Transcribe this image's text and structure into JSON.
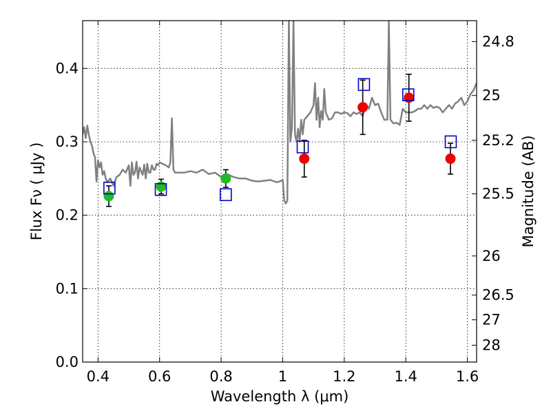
{
  "chart_data": {
    "type": "scatter",
    "title": "",
    "xlabel": "Wavelength  λ (μm)",
    "ylabel": "Flux  Fν  ( μJy )",
    "y2label": "Magnitude (AB)",
    "xlim": [
      0.35,
      1.63
    ],
    "ylim": [
      0.0,
      0.465
    ],
    "grid": true,
    "legend": "none",
    "x_ticks": [
      0.4,
      0.6,
      0.8,
      1.0,
      1.2,
      1.4,
      1.6
    ],
    "x_tick_labels": [
      "0.4",
      "0.6",
      "0.8",
      "1",
      "1.2",
      "1.4",
      "1.6"
    ],
    "y_ticks": [
      0.0,
      0.1,
      0.2,
      0.3,
      0.4
    ],
    "y_tick_labels": [
      "0.0",
      "0.1",
      "0.2",
      "0.3",
      "0.4"
    ],
    "y2_ticks": [
      24.8,
      25,
      25.2,
      25.5,
      26,
      26.5,
      27,
      28
    ],
    "y2_tick_labels": [
      "24.8",
      "25",
      "25.2",
      "25.5",
      "26",
      "26.5",
      "27",
      "28"
    ],
    "y2_ab_zero_point": 23.9,
    "colors": {
      "spectrum": "#808080",
      "green_points": "#22bb22",
      "red_points": "#ee0000",
      "model_squares": "#0000cc",
      "errorbars": "#000000"
    },
    "series": [
      {
        "kind": "line",
        "x": [
          0.35,
          0.355,
          0.36,
          0.365,
          0.37,
          0.375,
          0.38,
          0.385,
          0.39,
          0.395,
          0.4,
          0.405,
          0.41,
          0.415,
          0.42,
          0.425,
          0.43,
          0.44,
          0.45,
          0.46,
          0.47,
          0.48,
          0.49,
          0.5,
          0.505,
          0.51,
          0.515,
          0.52,
          0.525,
          0.53,
          0.535,
          0.54,
          0.545,
          0.55,
          0.555,
          0.56,
          0.565,
          0.57,
          0.575,
          0.58,
          0.585,
          0.59,
          0.595,
          0.6,
          0.61,
          0.62,
          0.63,
          0.635,
          0.64,
          0.645,
          0.65,
          0.66,
          0.68,
          0.7,
          0.72,
          0.74,
          0.76,
          0.78,
          0.8,
          0.82,
          0.84,
          0.86,
          0.88,
          0.9,
          0.92,
          0.94,
          0.96,
          0.98,
          0.99,
          1.0,
          1.005,
          1.01,
          1.015,
          1.02,
          1.025,
          1.03,
          1.035,
          1.04,
          1.045,
          1.05,
          1.055,
          1.06,
          1.065,
          1.07,
          1.08,
          1.09,
          1.1,
          1.105,
          1.11,
          1.115,
          1.12,
          1.125,
          1.13,
          1.135,
          1.14,
          1.15,
          1.16,
          1.17,
          1.18,
          1.19,
          1.2,
          1.21,
          1.22,
          1.23,
          1.24,
          1.25,
          1.26,
          1.27,
          1.28,
          1.29,
          1.3,
          1.31,
          1.32,
          1.33,
          1.34,
          1.345,
          1.35,
          1.36,
          1.37,
          1.38,
          1.39,
          1.4,
          1.41,
          1.42,
          1.43,
          1.44,
          1.45,
          1.46,
          1.47,
          1.48,
          1.49,
          1.5,
          1.51,
          1.52,
          1.53,
          1.54,
          1.55,
          1.56,
          1.57,
          1.58,
          1.59,
          1.6,
          1.61,
          1.62,
          1.63
        ],
        "y": [
          0.31,
          0.32,
          0.305,
          0.322,
          0.31,
          0.3,
          0.295,
          0.285,
          0.279,
          0.246,
          0.275,
          0.265,
          0.272,
          0.255,
          0.26,
          0.25,
          0.245,
          0.25,
          0.24,
          0.252,
          0.255,
          0.262,
          0.258,
          0.268,
          0.24,
          0.272,
          0.255,
          0.258,
          0.273,
          0.25,
          0.265,
          0.26,
          0.255,
          0.269,
          0.25,
          0.27,
          0.258,
          0.258,
          0.268,
          0.262,
          0.262,
          0.27,
          0.268,
          0.272,
          0.27,
          0.268,
          0.265,
          0.272,
          0.332,
          0.262,
          0.258,
          0.258,
          0.258,
          0.26,
          0.258,
          0.262,
          0.256,
          0.258,
          0.252,
          0.256,
          0.252,
          0.25,
          0.25,
          0.247,
          0.246,
          0.247,
          0.248,
          0.245,
          0.246,
          0.248,
          0.22,
          0.216,
          0.22,
          0.465,
          0.3,
          0.32,
          0.465,
          0.31,
          0.3,
          0.318,
          0.3,
          0.33,
          0.31,
          0.33,
          0.335,
          0.34,
          0.35,
          0.38,
          0.33,
          0.36,
          0.32,
          0.342,
          0.33,
          0.372,
          0.34,
          0.33,
          0.332,
          0.34,
          0.34,
          0.338,
          0.34,
          0.339,
          0.335,
          0.34,
          0.338,
          0.34,
          0.335,
          0.352,
          0.345,
          0.36,
          0.35,
          0.352,
          0.34,
          0.33,
          0.33,
          0.465,
          0.33,
          0.325,
          0.326,
          0.323,
          0.345,
          0.34,
          0.34,
          0.34,
          0.342,
          0.345,
          0.345,
          0.35,
          0.345,
          0.35,
          0.346,
          0.348,
          0.346,
          0.34,
          0.345,
          0.35,
          0.345,
          0.352,
          0.355,
          0.36,
          0.35,
          0.355,
          0.365,
          0.37,
          0.38
        ]
      },
      {
        "kind": "points",
        "marker": "circle",
        "x": [
          0.435,
          0.605,
          0.815
        ],
        "y": [
          0.226,
          0.239,
          0.25
        ],
        "yerr": [
          0.014,
          0.01,
          0.012
        ]
      },
      {
        "kind": "points",
        "marker": "circle",
        "x": [
          1.07,
          1.26,
          1.41,
          1.545
        ],
        "y": [
          0.277,
          0.347,
          0.36,
          0.277
        ],
        "yerr": [
          0.025,
          0.037,
          0.032,
          0.021
        ]
      },
      {
        "kind": "points",
        "marker": "open-square",
        "x": [
          0.437,
          0.604,
          0.815,
          1.065,
          1.264,
          1.408,
          1.546
        ],
        "y": [
          0.237,
          0.235,
          0.228,
          0.293,
          0.378,
          0.364,
          0.3
        ]
      }
    ]
  }
}
